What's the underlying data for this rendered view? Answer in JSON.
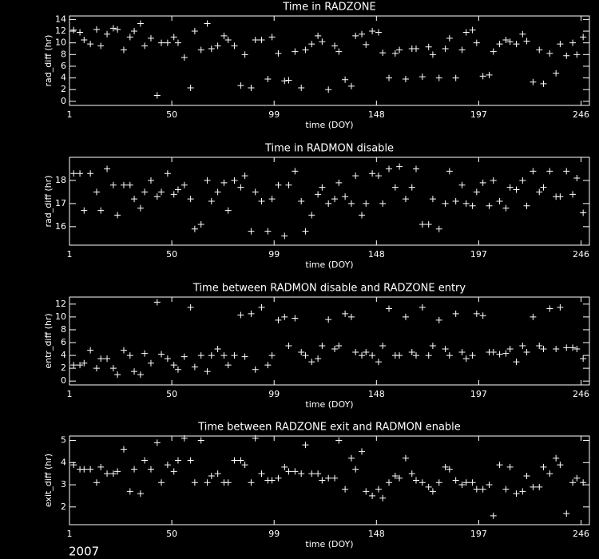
{
  "chart_data": [
    {
      "type": "scatter",
      "title": "Time in RADZONE",
      "xlabel": "time (DOY)",
      "ylabel": "rad_diff (hr)",
      "color": "#ffffff",
      "marker": "plus",
      "x": [
        3,
        6,
        8,
        11,
        14,
        16,
        19,
        22,
        24,
        27,
        30,
        32,
        35,
        37,
        40,
        43,
        45,
        48,
        51,
        53,
        56,
        59,
        61,
        64,
        67,
        69,
        72,
        75,
        77,
        80,
        83,
        85,
        88,
        90,
        93,
        96,
        98,
        101,
        104,
        106,
        109,
        112,
        114,
        117,
        120,
        122,
        125,
        128,
        130,
        133,
        136,
        138,
        141,
        143,
        146,
        149,
        151,
        154,
        157,
        159,
        162,
        165,
        167,
        170,
        173,
        175,
        178,
        181,
        183,
        186,
        189,
        191,
        194,
        196,
        199,
        202,
        204,
        207,
        210,
        212,
        215,
        218,
        220,
        223,
        226,
        228,
        231,
        234,
        236,
        239,
        242,
        244,
        247
      ],
      "values": [
        12.2,
        11.8,
        10.5,
        9.8,
        12.3,
        9.5,
        11.5,
        12.5,
        12.3,
        8.8,
        11,
        12,
        13.3,
        9.5,
        10.8,
        1,
        10,
        10,
        11,
        10,
        7.5,
        2.3,
        12,
        8.8,
        13.3,
        9,
        9.5,
        11.2,
        10.5,
        9.5,
        2.7,
        8,
        2.3,
        10.5,
        10.5,
        3.8,
        11,
        8.2,
        3.5,
        3.6,
        8.5,
        2.3,
        8.8,
        9.8,
        11.2,
        10.2,
        2,
        9.5,
        8.5,
        3.7,
        2.6,
        11.2,
        11.5,
        9.7,
        12,
        11.8,
        8.3,
        4,
        8.2,
        8.8,
        3.8,
        9,
        9,
        4.2,
        9.3,
        8,
        4,
        9,
        10.8,
        4,
        8.8,
        11.8,
        12.2,
        10,
        4.3,
        4.5,
        8.5,
        9.8,
        10.5,
        10.2,
        9.8,
        11.5,
        10.3,
        3.3,
        8.8,
        3,
        8.2,
        4.8,
        9.8,
        7.8,
        10,
        8,
        11
      ],
      "xlim": [
        1,
        250
      ],
      "xticks": [
        1,
        50,
        99,
        148,
        197,
        246
      ],
      "ylim": [
        -0.7,
        14.6
      ],
      "yticks": [
        0,
        2,
        4,
        6,
        8,
        10,
        12,
        14
      ]
    },
    {
      "type": "scatter",
      "title": "Time in RADMON disable",
      "xlabel": "time (DOY)",
      "ylabel": "rad_diff (hr)",
      "color": "#ffffff",
      "marker": "plus",
      "x": [
        3,
        6,
        8,
        11,
        14,
        16,
        19,
        22,
        24,
        27,
        30,
        32,
        35,
        37,
        40,
        43,
        45,
        48,
        51,
        53,
        56,
        59,
        61,
        64,
        67,
        69,
        72,
        75,
        77,
        80,
        83,
        85,
        88,
        90,
        93,
        96,
        98,
        101,
        104,
        106,
        109,
        112,
        114,
        117,
        120,
        122,
        125,
        128,
        130,
        133,
        136,
        138,
        141,
        143,
        146,
        149,
        151,
        154,
        157,
        159,
        162,
        165,
        167,
        170,
        173,
        175,
        178,
        181,
        183,
        186,
        189,
        191,
        194,
        196,
        199,
        202,
        204,
        207,
        210,
        212,
        215,
        218,
        220,
        223,
        226,
        228,
        231,
        234,
        236,
        239,
        242,
        244,
        247
      ],
      "values": [
        18.3,
        18.3,
        16.7,
        18.3,
        17.5,
        16.7,
        18.5,
        17.8,
        16.5,
        17.8,
        17.8,
        17.2,
        16.8,
        17.5,
        18,
        17.3,
        17.5,
        18.3,
        17.4,
        17.6,
        17.8,
        17.2,
        15.9,
        16.1,
        18,
        17.1,
        17.5,
        17.9,
        16.7,
        18,
        17.7,
        18.2,
        15.8,
        17.5,
        17.1,
        15.8,
        17.2,
        17.8,
        15.6,
        17.8,
        18.4,
        17.1,
        15.8,
        16.5,
        17.4,
        17.7,
        17,
        17.2,
        17.9,
        17.3,
        17,
        18.2,
        16.5,
        17,
        18.3,
        18.2,
        17,
        18.5,
        17.7,
        18.6,
        17.2,
        17.7,
        18.5,
        16.1,
        16.1,
        17.2,
        15.9,
        17,
        18.4,
        17.1,
        17.8,
        17,
        16.9,
        17.5,
        17.9,
        16.9,
        18,
        17.1,
        16.8,
        17.7,
        17.6,
        18,
        16.9,
        18.4,
        17.5,
        17.7,
        18.4,
        17.3,
        17.3,
        18.4,
        17.4,
        18.1,
        16.6
      ],
      "xlim": [
        1,
        250
      ],
      "xticks": [
        1,
        50,
        99,
        148,
        197,
        246
      ],
      "ylim": [
        15.2,
        19
      ],
      "yticks": [
        16,
        17,
        18
      ]
    },
    {
      "type": "scatter",
      "title": "Time between RADMON disable and RADZONE entry",
      "xlabel": "time (DOY)",
      "ylabel": "entr_diff (hr)",
      "color": "#ffffff",
      "marker": "plus",
      "x": [
        3,
        6,
        8,
        11,
        14,
        16,
        19,
        22,
        24,
        27,
        30,
        32,
        35,
        37,
        40,
        43,
        45,
        48,
        51,
        53,
        56,
        59,
        61,
        64,
        67,
        69,
        72,
        75,
        77,
        80,
        83,
        85,
        88,
        90,
        93,
        96,
        98,
        101,
        104,
        106,
        109,
        112,
        114,
        117,
        120,
        122,
        125,
        128,
        130,
        133,
        136,
        138,
        141,
        143,
        146,
        149,
        151,
        154,
        157,
        159,
        162,
        165,
        167,
        170,
        173,
        175,
        178,
        181,
        183,
        186,
        189,
        191,
        194,
        196,
        199,
        202,
        204,
        207,
        210,
        212,
        215,
        218,
        220,
        223,
        226,
        228,
        231,
        234,
        236,
        239,
        242,
        244,
        247
      ],
      "values": [
        2.5,
        2.5,
        2.8,
        4.8,
        2,
        3.5,
        3.5,
        2,
        1,
        4.8,
        4,
        1.5,
        1,
        4.3,
        2.8,
        12.3,
        4.2,
        3.5,
        2.5,
        1.8,
        3.8,
        11.5,
        2.2,
        4,
        1.5,
        4,
        5,
        4,
        2.5,
        4,
        10.3,
        3.8,
        10.5,
        1.8,
        11.5,
        2.5,
        4,
        9.5,
        10,
        5.5,
        9.8,
        4.5,
        4,
        3,
        3.5,
        5.5,
        9.6,
        5,
        5.5,
        10.5,
        10,
        4.5,
        4,
        4.5,
        4,
        3,
        5.5,
        11.3,
        4,
        4,
        10,
        4.5,
        4,
        11.5,
        4,
        5.5,
        9.5,
        5,
        4,
        10.5,
        4.5,
        3.5,
        4,
        10.5,
        10.2,
        4.5,
        4.5,
        4.2,
        4.3,
        5,
        3,
        5.5,
        4.5,
        10,
        5.5,
        5,
        11.3,
        5,
        11.5,
        5.2,
        5.2,
        5,
        3.5
      ],
      "xlim": [
        1,
        250
      ],
      "xticks": [
        1,
        50,
        99,
        148,
        197,
        246
      ],
      "ylim": [
        -0.6,
        13.1
      ],
      "yticks": [
        0,
        2,
        4,
        6,
        8,
        10,
        12
      ]
    },
    {
      "type": "scatter",
      "title": "Time between RADZONE exit and RADMON enable",
      "xlabel": "time (DOY)",
      "ylabel": "exit_diff (hr)",
      "color": "#ffffff",
      "marker": "plus",
      "x": [
        3,
        6,
        8,
        11,
        14,
        16,
        19,
        22,
        24,
        27,
        30,
        32,
        35,
        37,
        40,
        43,
        45,
        48,
        51,
        53,
        56,
        59,
        61,
        64,
        67,
        69,
        72,
        75,
        77,
        80,
        83,
        85,
        88,
        90,
        93,
        96,
        98,
        101,
        104,
        106,
        109,
        112,
        114,
        117,
        120,
        122,
        125,
        128,
        130,
        133,
        136,
        138,
        141,
        143,
        146,
        149,
        151,
        154,
        157,
        159,
        162,
        165,
        167,
        170,
        173,
        175,
        178,
        181,
        183,
        186,
        189,
        191,
        194,
        196,
        199,
        202,
        204,
        207,
        210,
        212,
        215,
        218,
        220,
        223,
        226,
        228,
        231,
        234,
        236,
        239,
        242,
        244,
        247
      ],
      "values": [
        3.9,
        3.7,
        3.7,
        3.7,
        3.1,
        3.8,
        3.5,
        3.5,
        3.6,
        4.6,
        2.7,
        3.7,
        2.6,
        4.1,
        3.7,
        4.9,
        3.1,
        3.9,
        3.6,
        4.1,
        5.1,
        4.1,
        3.1,
        5,
        3.1,
        3.4,
        3.5,
        3.1,
        3.1,
        4.1,
        4.1,
        3.9,
        3.1,
        5.1,
        3.5,
        3.2,
        3.2,
        3.3,
        3.8,
        3.6,
        3.6,
        3.5,
        4.8,
        3.5,
        3.5,
        3.2,
        3.3,
        3.3,
        5,
        2.8,
        4.2,
        3.7,
        4.5,
        2.7,
        2.5,
        2.8,
        2.4,
        3.1,
        3.4,
        3.3,
        4.2,
        3.5,
        3.2,
        3.1,
        2.9,
        2.7,
        3.1,
        3.8,
        3.7,
        3.2,
        3,
        3.1,
        3.1,
        2.8,
        2.8,
        3,
        1.6,
        3.9,
        2.8,
        3.8,
        2.6,
        2.7,
        3.4,
        2.9,
        2.9,
        3.8,
        3.5,
        4.2,
        3.9,
        1.7,
        3.1,
        3.3,
        3.1
      ],
      "xlim": [
        1,
        250
      ],
      "xticks": [
        1,
        50,
        99,
        148,
        197,
        246
      ],
      "ylim": [
        1.2,
        5.2
      ],
      "yticks": [
        2,
        3,
        4,
        5
      ]
    }
  ],
  "footer": {
    "year": "2007"
  }
}
